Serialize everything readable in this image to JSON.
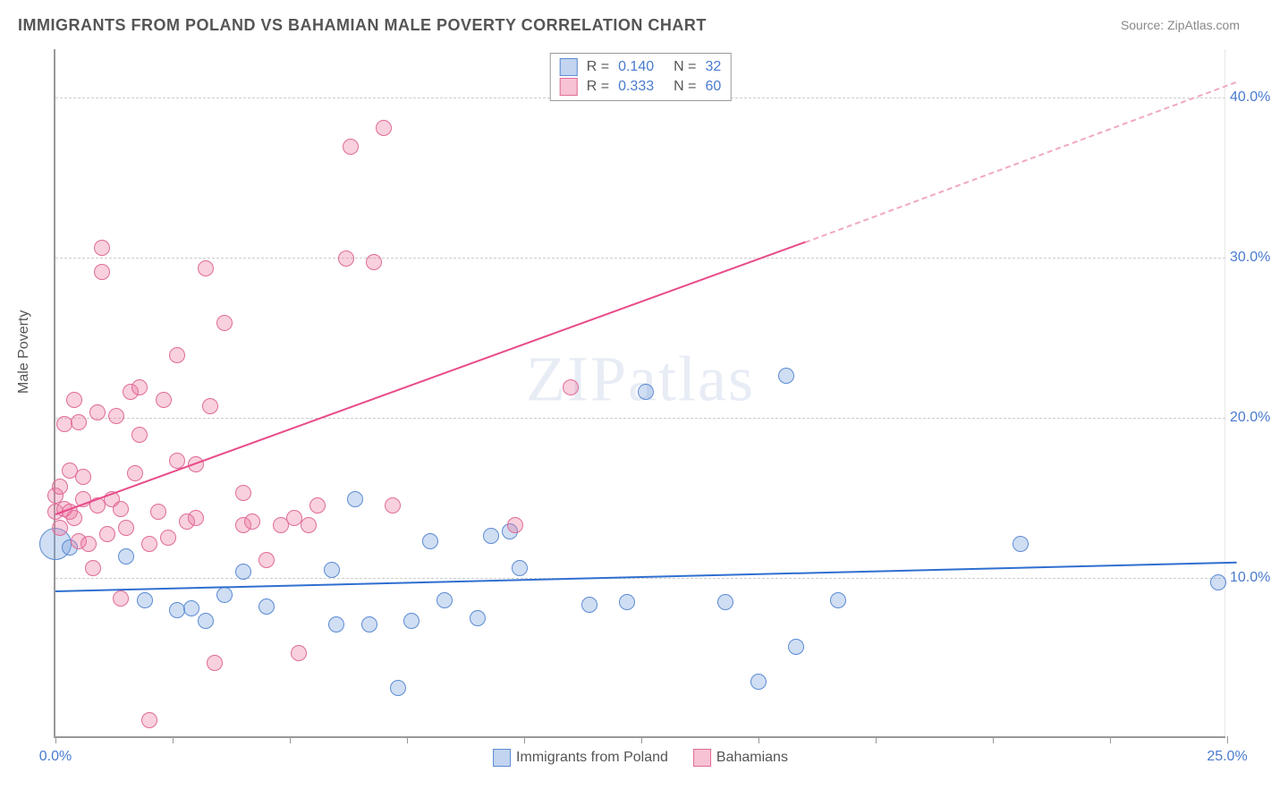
{
  "title": "IMMIGRANTS FROM POLAND VS BAHAMIAN MALE POVERTY CORRELATION CHART",
  "source_label": "Source: ",
  "source_name": "ZipAtlas.com",
  "ylabel": "Male Poverty",
  "watermark": "ZIPatlas",
  "chart": {
    "type": "scatter-correlation",
    "xlim": [
      0,
      25
    ],
    "ylim": [
      0,
      43
    ],
    "x_ticks_minor_step": 2.5,
    "x_tick_labels": [
      {
        "x": 0,
        "label": "0.0%"
      },
      {
        "x": 25,
        "label": "25.0%"
      }
    ],
    "y_grid": [
      10,
      20,
      30,
      40
    ],
    "y_tick_labels": [
      {
        "y": 10,
        "label": "10.0%"
      },
      {
        "y": 20,
        "label": "20.0%"
      },
      {
        "y": 30,
        "label": "30.0%"
      },
      {
        "y": 40,
        "label": "40.0%"
      }
    ],
    "grid_color": "#cccccc",
    "background": "#ffffff"
  },
  "series": [
    {
      "id": "poland",
      "label": "Immigrants from Poland",
      "fill": "rgba(120,160,220,0.35)",
      "stroke": "#5b8bd4",
      "swatch_fill": "rgba(120,160,220,0.45)",
      "swatch_stroke": "#5b8bd4",
      "R": "0.140",
      "N": "32",
      "trend": {
        "x1": 0,
        "y1": 9.2,
        "x2": 25.2,
        "y2": 11.0,
        "color": "#2f6fd0",
        "dash": false
      },
      "marker_r": 9,
      "points": [
        {
          "x": 0.0,
          "y": 12.0,
          "r": 18
        },
        {
          "x": 0.3,
          "y": 11.8
        },
        {
          "x": 1.5,
          "y": 11.2
        },
        {
          "x": 1.9,
          "y": 8.5
        },
        {
          "x": 2.6,
          "y": 7.9
        },
        {
          "x": 2.9,
          "y": 8.0
        },
        {
          "x": 3.2,
          "y": 7.2
        },
        {
          "x": 3.6,
          "y": 8.8
        },
        {
          "x": 4.0,
          "y": 10.3
        },
        {
          "x": 4.5,
          "y": 8.1
        },
        {
          "x": 5.9,
          "y": 10.4
        },
        {
          "x": 6.0,
          "y": 7.0
        },
        {
          "x": 6.4,
          "y": 14.8
        },
        {
          "x": 6.7,
          "y": 7.0
        },
        {
          "x": 7.3,
          "y": 3.0
        },
        {
          "x": 7.6,
          "y": 7.2
        },
        {
          "x": 8.0,
          "y": 12.2
        },
        {
          "x": 8.3,
          "y": 8.5
        },
        {
          "x": 9.0,
          "y": 7.4
        },
        {
          "x": 9.3,
          "y": 12.5
        },
        {
          "x": 9.7,
          "y": 12.8
        },
        {
          "x": 9.9,
          "y": 10.5
        },
        {
          "x": 11.4,
          "y": 8.2
        },
        {
          "x": 12.2,
          "y": 8.4
        },
        {
          "x": 12.6,
          "y": 21.5
        },
        {
          "x": 14.3,
          "y": 8.4
        },
        {
          "x": 15.6,
          "y": 22.5
        },
        {
          "x": 15.0,
          "y": 3.4
        },
        {
          "x": 15.8,
          "y": 5.6
        },
        {
          "x": 16.7,
          "y": 8.5
        },
        {
          "x": 20.6,
          "y": 12.0
        },
        {
          "x": 24.8,
          "y": 9.6
        }
      ]
    },
    {
      "id": "bahamians",
      "label": "Bahamians",
      "fill": "rgba(235,120,160,0.35)",
      "stroke": "#e06b98",
      "swatch_fill": "rgba(235,120,160,0.45)",
      "swatch_stroke": "#e06b98",
      "R": "0.333",
      "N": "60",
      "trend": {
        "x1": 0,
        "y1": 14.0,
        "x2": 16.0,
        "y2": 31.0,
        "color": "#e84b8a",
        "dash": false
      },
      "trend_ext": {
        "x1": 16.0,
        "y1": 31.0,
        "x2": 25.2,
        "y2": 41.0,
        "color": "#f1a8c0",
        "dash": true
      },
      "marker_r": 9,
      "points": [
        {
          "x": 0.0,
          "y": 14.0
        },
        {
          "x": 0.0,
          "y": 15.0
        },
        {
          "x": 0.1,
          "y": 13.0
        },
        {
          "x": 0.1,
          "y": 15.6
        },
        {
          "x": 0.2,
          "y": 14.2
        },
        {
          "x": 0.2,
          "y": 19.5
        },
        {
          "x": 0.3,
          "y": 14.0
        },
        {
          "x": 0.3,
          "y": 16.6
        },
        {
          "x": 0.4,
          "y": 13.6
        },
        {
          "x": 0.4,
          "y": 21.0
        },
        {
          "x": 0.5,
          "y": 19.6
        },
        {
          "x": 0.5,
          "y": 12.2
        },
        {
          "x": 0.6,
          "y": 14.8
        },
        {
          "x": 0.6,
          "y": 16.2
        },
        {
          "x": 0.7,
          "y": 12.0
        },
        {
          "x": 0.8,
          "y": 10.5
        },
        {
          "x": 0.9,
          "y": 20.2
        },
        {
          "x": 0.9,
          "y": 14.4
        },
        {
          "x": 1.0,
          "y": 29.0
        },
        {
          "x": 1.0,
          "y": 30.5
        },
        {
          "x": 1.1,
          "y": 12.6
        },
        {
          "x": 1.2,
          "y": 14.8
        },
        {
          "x": 1.3,
          "y": 20.0
        },
        {
          "x": 1.4,
          "y": 8.6
        },
        {
          "x": 1.4,
          "y": 14.2
        },
        {
          "x": 1.5,
          "y": 13.0
        },
        {
          "x": 1.6,
          "y": 21.5
        },
        {
          "x": 1.7,
          "y": 16.4
        },
        {
          "x": 1.8,
          "y": 18.8
        },
        {
          "x": 1.8,
          "y": 21.8
        },
        {
          "x": 2.0,
          "y": 12.0
        },
        {
          "x": 2.0,
          "y": 1.0
        },
        {
          "x": 2.2,
          "y": 14.0
        },
        {
          "x": 2.3,
          "y": 21.0
        },
        {
          "x": 2.4,
          "y": 12.4
        },
        {
          "x": 2.6,
          "y": 17.2
        },
        {
          "x": 2.6,
          "y": 23.8
        },
        {
          "x": 2.8,
          "y": 13.4
        },
        {
          "x": 3.0,
          "y": 13.6
        },
        {
          "x": 3.0,
          "y": 17.0
        },
        {
          "x": 3.2,
          "y": 29.2
        },
        {
          "x": 3.3,
          "y": 20.6
        },
        {
          "x": 3.4,
          "y": 4.6
        },
        {
          "x": 3.6,
          "y": 25.8
        },
        {
          "x": 4.0,
          "y": 15.2
        },
        {
          "x": 4.0,
          "y": 13.2
        },
        {
          "x": 4.2,
          "y": 13.4
        },
        {
          "x": 4.5,
          "y": 11.0
        },
        {
          "x": 4.8,
          "y": 13.2
        },
        {
          "x": 5.1,
          "y": 13.6
        },
        {
          "x": 5.2,
          "y": 5.2
        },
        {
          "x": 5.4,
          "y": 13.2
        },
        {
          "x": 5.6,
          "y": 14.4
        },
        {
          "x": 6.2,
          "y": 29.8
        },
        {
          "x": 6.3,
          "y": 36.8
        },
        {
          "x": 6.8,
          "y": 29.6
        },
        {
          "x": 7.0,
          "y": 38.0
        },
        {
          "x": 7.2,
          "y": 14.4
        },
        {
          "x": 11.0,
          "y": 21.8
        },
        {
          "x": 9.8,
          "y": 13.2
        }
      ]
    }
  ],
  "legend_top": {
    "rows": [
      {
        "series": 0
      },
      {
        "series": 1
      }
    ]
  }
}
